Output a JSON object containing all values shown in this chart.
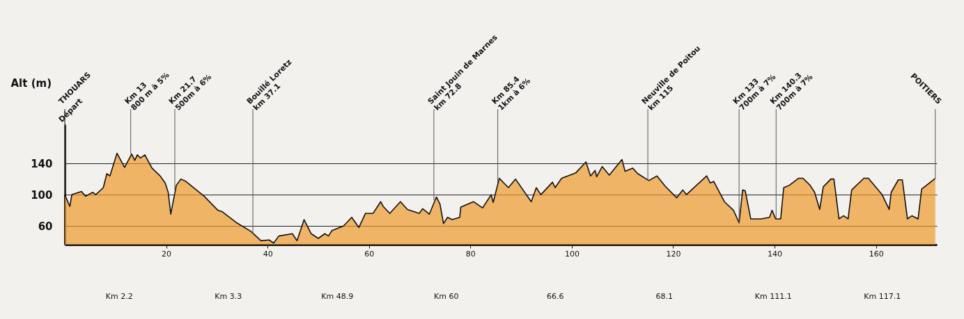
{
  "chart_data": {
    "type": "area",
    "ylabel": "Alt (m)",
    "xlim": [
      0,
      172
    ],
    "xticks": [
      20,
      40,
      60,
      80,
      100,
      120,
      140,
      160
    ],
    "ylim": [
      36,
      190
    ],
    "yticks": [
      60,
      100,
      140
    ],
    "grid": "y",
    "series": [
      {
        "color": "#ef9a2e",
        "x": [
          0,
          1.0,
          1.4,
          3.3,
          4.1,
          5.5,
          6.1,
          7.6,
          8.3,
          8.9,
          10.3,
          11.8,
          13.2,
          13.8,
          14.3,
          14.9,
          15.8,
          17.2,
          18.8,
          19.8,
          20.4,
          20.9,
          22.0,
          22.9,
          23.9,
          27.5,
          30.2,
          31.1,
          33.9,
          36.7,
          38.7,
          40.3,
          41.2,
          42.2,
          44.9,
          45.8,
          47.2,
          48.6,
          50.0,
          51.3,
          52.0,
          52.7,
          55.0,
          56.6,
          58.0,
          59.3,
          60.8,
          62.3,
          62.8,
          64.1,
          66.2,
          67.6,
          69.9,
          70.6,
          71.9,
          73.3,
          74.0,
          74.7,
          75.5,
          76.4,
          77.9,
          78.1,
          80.6,
          82.4,
          84.1,
          84.5,
          85.7,
          87.5,
          88.9,
          92.0,
          93.0,
          93.9,
          96.2,
          96.7,
          98.0,
          100.8,
          102.8,
          103.7,
          104.6,
          104.9,
          106.0,
          107.4,
          109.9,
          110.5,
          112.0,
          113.0,
          115.2,
          116.8,
          118.4,
          120.7,
          121.9,
          122.6,
          123.6,
          126.6,
          127.3,
          128.0,
          130.1,
          131.9,
          133.0,
          133.7,
          134.2,
          135.3,
          137.3,
          139.0,
          139.5,
          140.2,
          141.2,
          141.8,
          142.9,
          144.7,
          145.6,
          147.0,
          147.9,
          148.9,
          149.6,
          151.1,
          151.7,
          152.7,
          153.6,
          154.5,
          155.2,
          157.6,
          158.5,
          161.2,
          162.6,
          163.0,
          164.4,
          165.2,
          166.2,
          167.1,
          168.3,
          169.0,
          171.7
        ],
        "values": [
          100,
          85,
          100,
          104,
          98,
          103,
          100,
          109,
          127,
          124,
          153,
          135,
          152,
          144,
          151,
          147,
          151,
          134,
          124,
          115,
          103,
          75,
          112,
          120,
          117,
          98,
          80,
          78,
          64,
          53,
          41,
          42,
          38,
          47,
          50,
          41,
          68,
          50,
          44,
          50,
          47,
          54,
          60,
          71,
          58,
          76,
          76,
          91,
          85,
          76,
          91,
          81,
          76,
          82,
          75,
          97,
          88,
          63,
          71,
          68,
          71,
          84,
          91,
          83,
          100,
          90,
          121,
          109,
          120,
          91,
          109,
          100,
          116,
          109,
          121,
          128,
          142,
          124,
          131,
          123,
          136,
          125,
          145,
          130,
          134,
          127,
          118,
          124,
          111,
          96,
          106,
          100,
          106,
          124,
          115,
          117,
          91,
          80,
          64,
          106,
          105,
          69,
          69,
          71,
          80,
          69,
          69,
          109,
          112,
          121,
          121,
          112,
          103,
          81,
          110,
          120,
          120,
          69,
          73,
          69,
          106,
          121,
          121,
          100,
          81,
          103,
          119,
          119,
          69,
          73,
          69,
          107,
          121
        ]
      }
    ],
    "annotations": [
      {
        "text": "THOUARS",
        "x": 0,
        "y": 100
      },
      {
        "text": "Départ",
        "x": 0,
        "y": 100
      },
      {
        "text": "POITIERS",
        "x": 171.7,
        "y": 121
      },
      {
        "text": "Km 13\n800 m à 5%",
        "x": 13,
        "y": 152
      },
      {
        "text": "Km 21.7\n500m à 6%",
        "x": 21.7,
        "y": 106
      },
      {
        "text": "Bouillé Loretz\nkm 37.1",
        "x": 37.1,
        "y": 50
      },
      {
        "text": "Saint Jouin de Marnes\nkm 72.8",
        "x": 72.8,
        "y": 93
      },
      {
        "text": "Km 85.4\n1km à 6%",
        "x": 85.4,
        "y": 115
      },
      {
        "text": "Neuville de Poitou\nkm 115",
        "x": 115,
        "y": 118
      },
      {
        "text": "Km 133\n700m à 7%",
        "x": 133,
        "y": 64
      },
      {
        "text": "Km 140.3\n700m à 7%",
        "x": 140.3,
        "y": 69
      },
      "Km 2.2",
      "Km 3.3",
      "Km 48.9",
      "Km 60",
      "66.6",
      "68.1",
      "Km 111.1",
      "Km 117.1"
    ]
  }
}
